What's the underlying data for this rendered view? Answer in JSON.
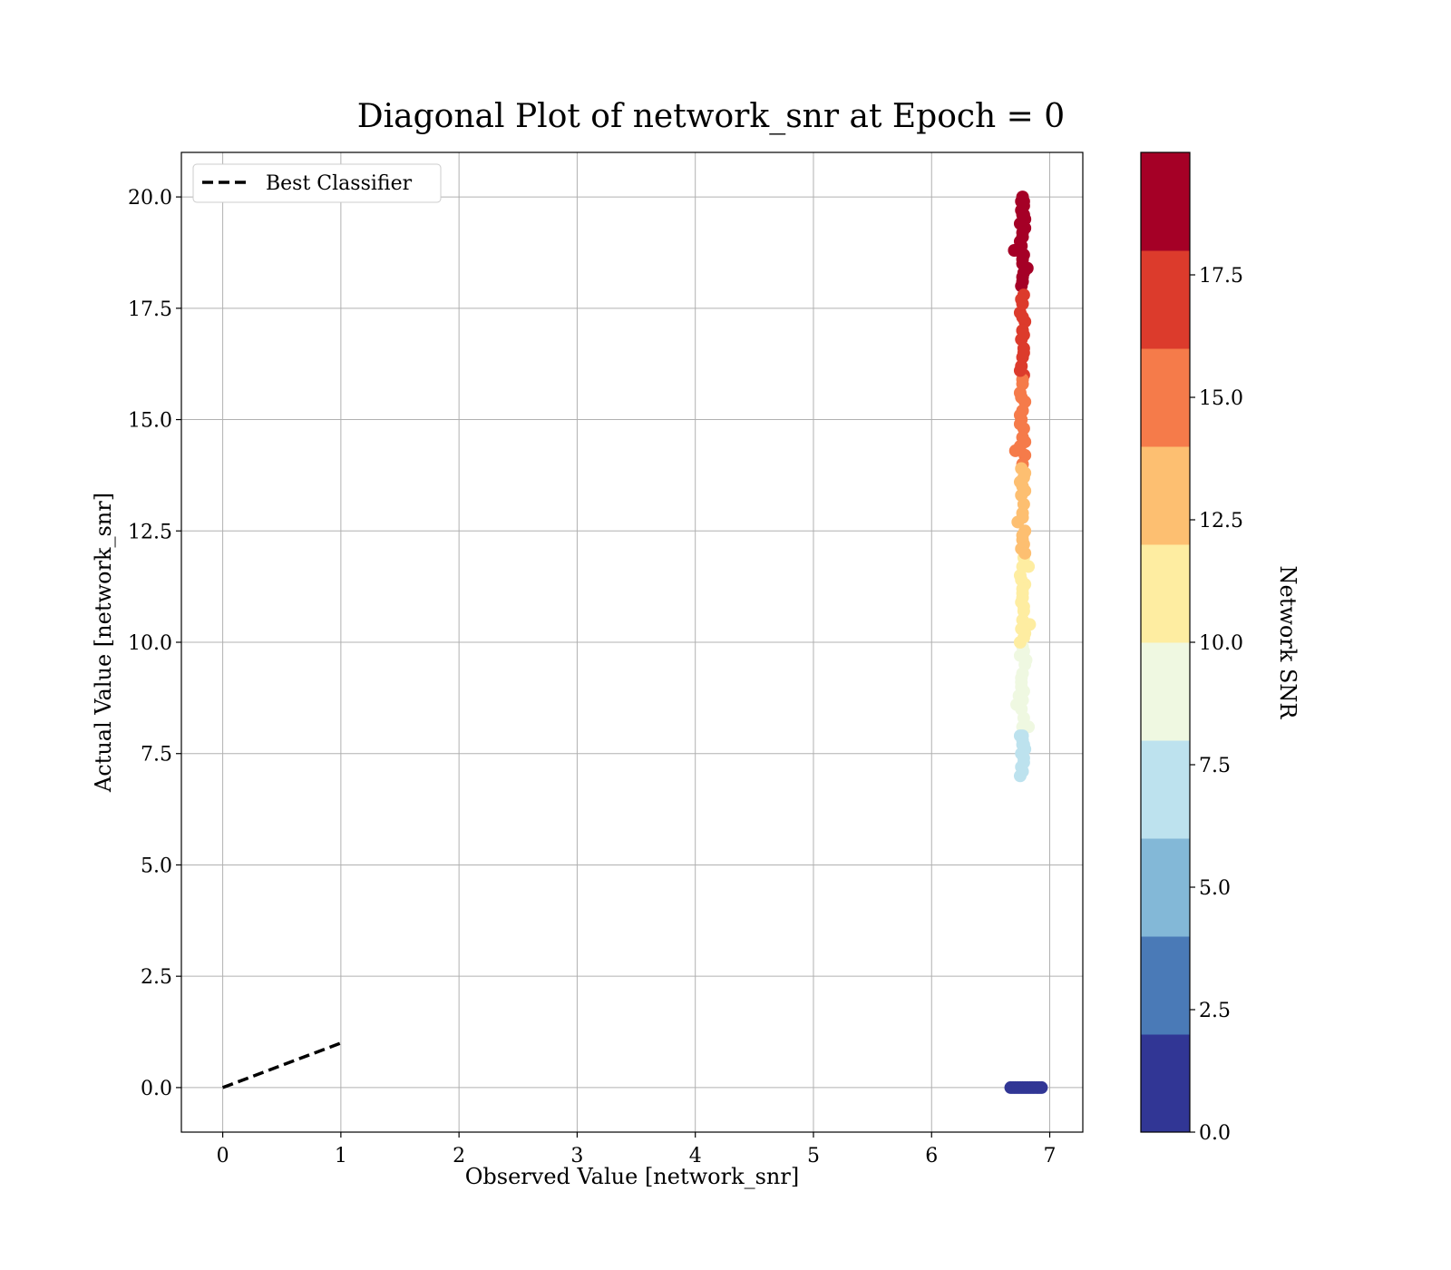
{
  "chart_data": {
    "type": "scatter",
    "title": "Diagonal Plot of network_snr at Epoch = 0",
    "xlabel": "Observed Value [network_snr]",
    "ylabel": "Actual Value [network_snr]",
    "xlim": [
      -0.35,
      7.28
    ],
    "ylim": [
      -1.0,
      21.0
    ],
    "xticks": [
      0,
      1,
      2,
      3,
      4,
      5,
      6,
      7
    ],
    "xtick_labels": [
      "0",
      "1",
      "2",
      "3",
      "4",
      "5",
      "6",
      "7"
    ],
    "yticks": [
      0.0,
      2.5,
      5.0,
      7.5,
      10.0,
      12.5,
      15.0,
      17.5,
      20.0
    ],
    "ytick_labels": [
      "0.0",
      "2.5",
      "5.0",
      "7.5",
      "10.0",
      "12.5",
      "15.0",
      "17.5",
      "20.0"
    ],
    "grid": true,
    "legend": {
      "placement": "upper-left",
      "entries": [
        {
          "label": "Best Classifier",
          "style": "dashed",
          "color": "#000000"
        }
      ]
    },
    "reference_line": {
      "name": "Best Classifier",
      "x": [
        0,
        1
      ],
      "y": [
        0,
        1
      ],
      "style": "dashed"
    },
    "scatter_points": {
      "x": [
        6.77,
        6.76,
        6.78,
        6.77,
        6.75,
        6.79,
        6.77,
        6.76,
        6.78,
        6.77,
        6.73,
        6.81,
        6.77,
        6.76,
        6.78,
        6.77,
        6.75,
        6.79,
        6.77,
        6.76,
        6.78,
        6.77,
        6.76,
        6.78,
        6.77,
        6.75,
        6.79,
        6.71,
        6.77,
        6.76,
        6.78,
        6.77,
        6.75,
        6.79,
        6.77,
        6.76,
        6.78,
        6.77,
        6.76,
        6.78,
        6.77,
        6.73,
        6.79,
        6.77,
        6.76,
        6.78,
        6.77,
        6.75,
        6.79,
        6.77,
        6.76,
        6.78,
        6.83,
        6.77,
        6.76,
        6.78,
        6.77,
        6.75,
        6.79,
        6.77,
        6.76,
        6.78,
        6.77,
        6.76,
        6.78,
        6.77,
        6.75,
        6.82,
        6.77,
        6.76,
        6.78,
        6.77,
        6.75,
        6.79,
        6.77,
        6.76,
        6.78,
        6.77,
        6.76,
        6.78,
        6.72,
        6.75,
        6.79,
        6.77,
        6.76,
        6.78,
        6.77,
        6.75,
        6.79,
        6.82,
        6.76,
        6.78,
        6.77,
        6.77,
        6.76,
        6.78,
        6.77,
        6.75,
        6.79,
        6.7,
        6.76,
        6.78,
        6.77,
        6.78,
        6.77,
        6.75,
        6.79,
        6.77,
        6.78,
        6.8,
        6.74,
        6.78,
        6.75,
        6.79,
        6.77,
        6.76,
        6.78,
        6.77,
        6.75,
        6.79,
        6.67,
        6.69,
        6.71,
        6.73,
        6.75,
        6.77,
        6.79,
        6.81,
        6.83,
        6.85,
        6.87,
        6.89,
        6.91,
        6.93
      ],
      "y": [
        20.0,
        19.9,
        19.8,
        19.6,
        19.4,
        19.3,
        19.1,
        18.9,
        18.7,
        18.5,
        18.8,
        18.4,
        18.2,
        18.0,
        17.8,
        17.6,
        17.4,
        17.2,
        17.0,
        16.8,
        16.6,
        16.4,
        16.2,
        16.0,
        15.8,
        15.6,
        15.4,
        14.3,
        15.2,
        15.0,
        14.8,
        14.6,
        14.4,
        14.2,
        14.0,
        13.9,
        13.7,
        13.5,
        13.3,
        13.1,
        12.9,
        12.7,
        12.5,
        12.3,
        12.1,
        11.9,
        11.7,
        11.5,
        11.3,
        11.1,
        10.9,
        10.7,
        10.4,
        10.5,
        10.3,
        10.1,
        9.9,
        9.7,
        9.5,
        9.3,
        9.1,
        8.9,
        8.7,
        8.5,
        8.3,
        8.1,
        7.9,
        8.1,
        7.7,
        7.5,
        7.3,
        7.1,
        7.0,
        7.6,
        7.9,
        7.2,
        7.4,
        7.8,
        9.2,
        9.8,
        8.6,
        10.0,
        10.2,
        11.0,
        11.4,
        12.2,
        12.8,
        13.6,
        14.5,
        11.7,
        15.5,
        16.5,
        17.0,
        17.3,
        17.7,
        18.3,
        18.6,
        19.0,
        19.5,
        18.8,
        19.7,
        19.9,
        19.2,
        16.9,
        15.9,
        14.9,
        13.8,
        12.4,
        10.8,
        9.6,
        8.8,
        7.7,
        16.1,
        13.4,
        11.2,
        9.0,
        19.6,
        18.1,
        15.1,
        12.0,
        0.0,
        0.0,
        0.0,
        0.0,
        0.0,
        0.0,
        0.0,
        0.0,
        0.0,
        0.0,
        0.0,
        0.0,
        0.0,
        0.0
      ]
    },
    "colorbar": {
      "label": "Network SNR",
      "vmin": 0.0,
      "vmax": 20.0,
      "ticks": [
        0.0,
        2.5,
        5.0,
        7.5,
        10.0,
        12.5,
        15.0,
        17.5
      ],
      "tick_labels": [
        "0.0",
        "2.5",
        "5.0",
        "7.5",
        "10.0",
        "12.5",
        "15.0",
        "17.5"
      ],
      "colors": [
        "#313695",
        "#4a7ab7",
        "#83b8d7",
        "#bde2ee",
        "#eff8e1",
        "#feeda1",
        "#fdbf71",
        "#f57b4a",
        "#dc3b2c",
        "#a50026"
      ]
    }
  }
}
